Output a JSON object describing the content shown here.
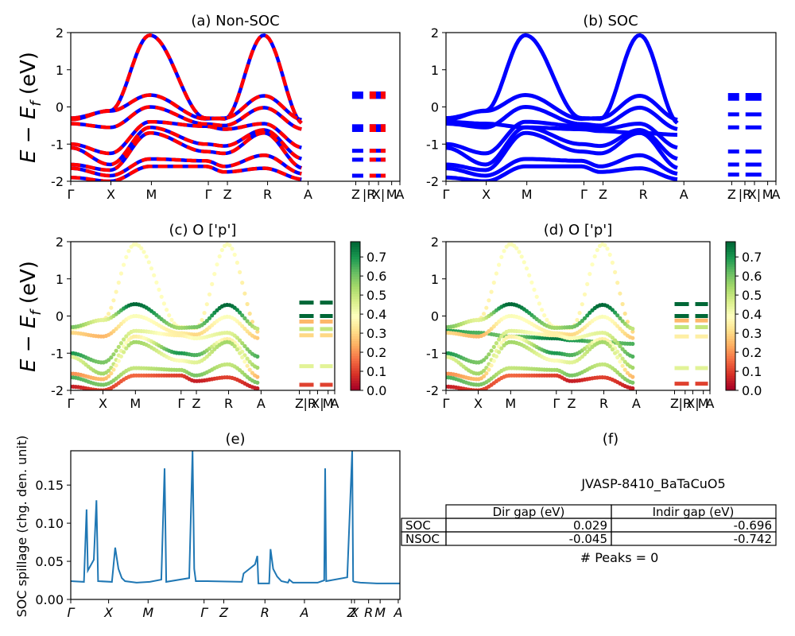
{
  "chart_data": [
    {
      "id": "a",
      "type": "line",
      "title": "(a) Non-SOC",
      "ylabel": "E − E_f (eV)",
      "ylim": [
        -2,
        2
      ],
      "y_ticks": [
        -2,
        -1,
        0,
        1,
        2
      ],
      "x_ticks": [
        {
          "pos": 0.0,
          "label": "Γ"
        },
        {
          "pos": 0.122,
          "label": "X"
        },
        {
          "pos": 0.245,
          "label": "M"
        },
        {
          "pos": 0.418,
          "label": "Γ"
        },
        {
          "pos": 0.476,
          "label": "Z"
        },
        {
          "pos": 0.598,
          "label": "R"
        },
        {
          "pos": 0.721,
          "label": "A"
        },
        {
          "pos": 0.866,
          "label": "Z"
        },
        {
          "pos": 0.906,
          "label": "|R"
        },
        {
          "pos": 0.935,
          "label": "X|"
        },
        {
          "pos": 0.975,
          "label": "M"
        },
        {
          "pos": 1.0,
          "label": "A"
        }
      ],
      "series": [
        {
          "color": "#0000ff",
          "style": "solid",
          "width": 4.5,
          "values": [
            [
              -0.34,
              -0.1,
              1.93,
              -0.3,
              -0.32,
              1.93,
              -0.45
            ],
            [
              -0.3,
              -0.11,
              0.32,
              -0.32,
              -0.3,
              0.3,
              -0.35
            ],
            [
              -0.45,
              -0.55,
              0.0,
              -0.46,
              -0.5,
              -0.02,
              -0.6
            ],
            [
              -1.0,
              -1.25,
              -0.4,
              -0.52,
              -0.6,
              -0.45,
              -1.1
            ],
            [
              -1.1,
              -1.55,
              -0.55,
              -1.0,
              -1.05,
              -0.62,
              -1.4
            ],
            [
              -1.55,
              -1.7,
              -0.7,
              -1.2,
              -1.25,
              -0.7,
              -1.65
            ],
            [
              -1.65,
              -1.85,
              -1.4,
              -1.45,
              -1.6,
              -1.3,
              -1.8
            ],
            [
              -1.9,
              -2.0,
              -1.6,
              -1.6,
              -1.75,
              -1.65,
              -1.95
            ]
          ]
        },
        {
          "color": "#ff0000",
          "style": "dashed",
          "width": 4.5,
          "values": [
            [
              -0.34,
              -0.1,
              1.93,
              -0.3,
              -0.32,
              1.93,
              -0.45
            ],
            [
              -0.3,
              -0.11,
              0.32,
              -0.32,
              -0.3,
              0.3,
              -0.35
            ],
            [
              -0.45,
              -0.55,
              0.0,
              -0.46,
              -0.5,
              -0.02,
              -0.6
            ],
            [
              -1.0,
              -1.25,
              -0.4,
              -0.52,
              -0.6,
              -0.45,
              -1.1
            ],
            [
              -1.1,
              -1.55,
              -0.55,
              -1.0,
              -1.05,
              -0.62,
              -1.4
            ],
            [
              -1.55,
              -1.7,
              -0.7,
              -1.2,
              -1.25,
              -0.7,
              -1.65
            ],
            [
              -1.65,
              -1.85,
              -1.4,
              -1.45,
              -1.6,
              -1.3,
              -1.8
            ],
            [
              -1.9,
              -2.0,
              -1.6,
              -1.6,
              -1.75,
              -1.65,
              -1.95
            ]
          ]
        }
      ],
      "segments": [
        0.36,
        0.27,
        -0.52,
        -0.62,
        -1.18,
        -1.42,
        -1.85
      ]
    },
    {
      "id": "b",
      "type": "line",
      "title": "(b) SOC",
      "ylim": [
        -2,
        2
      ],
      "y_ticks": [
        -2,
        -1,
        0,
        1,
        2
      ],
      "x_ticks": [
        {
          "pos": 0.0,
          "label": "Γ"
        },
        {
          "pos": 0.122,
          "label": "X"
        },
        {
          "pos": 0.245,
          "label": "M"
        },
        {
          "pos": 0.418,
          "label": "Γ"
        },
        {
          "pos": 0.476,
          "label": "Z"
        },
        {
          "pos": 0.598,
          "label": "R"
        },
        {
          "pos": 0.721,
          "label": "A"
        },
        {
          "pos": 0.866,
          "label": "Z"
        },
        {
          "pos": 0.906,
          "label": "|R"
        },
        {
          "pos": 0.935,
          "label": "X|"
        },
        {
          "pos": 0.975,
          "label": "M"
        },
        {
          "pos": 1.0,
          "label": "A"
        }
      ],
      "series": [
        {
          "color": "#0000ff",
          "style": "solid",
          "width": 5,
          "values": [
            [
              -0.34,
              -0.1,
              1.93,
              -0.3,
              -0.32,
              1.93,
              -0.45
            ],
            [
              -0.3,
              -0.11,
              0.32,
              -0.32,
              -0.3,
              0.3,
              -0.35
            ],
            [
              -0.4,
              -0.45,
              -0.55,
              -0.6,
              -0.65,
              -0.7,
              -0.75
            ],
            [
              -0.45,
              -0.55,
              0.0,
              -0.46,
              -0.5,
              -0.02,
              -0.6
            ],
            [
              -1.0,
              -1.25,
              -0.4,
              -0.52,
              -0.6,
              -0.45,
              -1.1
            ],
            [
              -1.1,
              -1.55,
              -0.55,
              -1.0,
              -1.05,
              -0.62,
              -1.4
            ],
            [
              -1.55,
              -1.7,
              -0.7,
              -1.2,
              -1.25,
              -0.7,
              -1.65
            ],
            [
              -1.65,
              -1.85,
              -1.4,
              -1.45,
              -1.6,
              -1.3,
              -1.8
            ],
            [
              -1.9,
              -2.0,
              -1.6,
              -1.6,
              -1.75,
              -1.65,
              -1.95
            ]
          ]
        }
      ],
      "segments": [
        0.32,
        0.22,
        -0.2,
        -0.55,
        -1.2,
        -1.55,
        -1.82
      ]
    },
    {
      "id": "c",
      "type": "scatter",
      "title": "(c)  O ['p']",
      "ylabel": "E − E_f (eV)",
      "ylim": [
        -2,
        2
      ],
      "y_ticks": [
        -2,
        -1,
        0,
        1,
        2
      ],
      "colorbar": {
        "ticks": [
          0.0,
          0.1,
          0.2,
          0.3,
          0.4,
          0.5,
          0.6,
          0.7
        ],
        "range": [
          0,
          0.78
        ],
        "cmap": "RdYlGn"
      },
      "x_ticks": [
        {
          "pos": 0.0,
          "label": "Γ"
        },
        {
          "pos": 0.122,
          "label": "X"
        },
        {
          "pos": 0.245,
          "label": "M"
        },
        {
          "pos": 0.418,
          "label": "Γ"
        },
        {
          "pos": 0.476,
          "label": "Z"
        },
        {
          "pos": 0.598,
          "label": "R"
        },
        {
          "pos": 0.721,
          "label": "A"
        },
        {
          "pos": 0.866,
          "label": "Z"
        },
        {
          "pos": 0.906,
          "label": "|R"
        },
        {
          "pos": 0.935,
          "label": "X|"
        },
        {
          "pos": 0.975,
          "label": "M"
        },
        {
          "pos": 1.0,
          "label": "A"
        }
      ],
      "bands": [
        {
          "w": [
            0.4,
            0.35,
            0.4,
            0.38,
            0.36,
            0.4,
            0.3
          ],
          "values": [
            -0.34,
            -0.1,
            1.93,
            -0.3,
            -0.32,
            1.93,
            -0.45
          ]
        },
        {
          "w": [
            0.6,
            0.45,
            0.78,
            0.55,
            0.6,
            0.78,
            0.5
          ],
          "values": [
            -0.3,
            -0.11,
            0.32,
            -0.32,
            -0.3,
            0.3,
            -0.35
          ]
        },
        {
          "w": [
            0.3,
            0.25,
            0.4,
            0.35,
            0.3,
            0.4,
            0.28
          ],
          "values": [
            -0.45,
            -0.55,
            0.0,
            -0.46,
            -0.5,
            -0.02,
            -0.6
          ]
        },
        {
          "w": [
            0.7,
            0.6,
            0.45,
            0.35,
            0.4,
            0.45,
            0.65
          ],
          "values": [
            -1.0,
            -1.25,
            -0.4,
            -0.52,
            -0.6,
            -0.45,
            -1.1
          ]
        },
        {
          "w": [
            0.45,
            0.55,
            0.35,
            0.7,
            0.65,
            0.35,
            0.55
          ],
          "values": [
            -1.1,
            -1.55,
            -0.55,
            -1.0,
            -1.05,
            -0.62,
            -1.4
          ]
        },
        {
          "w": [
            0.2,
            0.25,
            0.55,
            0.4,
            0.45,
            0.55,
            0.25
          ],
          "values": [
            -1.55,
            -1.7,
            -0.7,
            -1.2,
            -1.25,
            -0.7,
            -1.65
          ]
        },
        {
          "w": [
            0.65,
            0.6,
            0.5,
            0.55,
            0.6,
            0.5,
            0.6
          ],
          "values": [
            -1.65,
            -1.85,
            -1.4,
            -1.45,
            -1.6,
            -1.3,
            -1.8
          ]
        },
        {
          "w": [
            0.05,
            0.1,
            0.15,
            0.1,
            0.05,
            0.1,
            0.05
          ],
          "values": [
            -1.9,
            -2.0,
            -1.6,
            -1.6,
            -1.75,
            -1.65,
            -1.95
          ]
        }
      ],
      "segments": [
        {
          "v": 0.36,
          "w": 0.78
        },
        {
          "v": 0.0,
          "w": 0.78
        },
        {
          "v": -0.15,
          "w": 0.25
        },
        {
          "v": -0.35,
          "w": 0.5
        },
        {
          "v": -0.52,
          "w": 0.3
        },
        {
          "v": -1.35,
          "w": 0.45
        },
        {
          "v": -1.85,
          "w": 0.1
        }
      ]
    },
    {
      "id": "d",
      "type": "scatter",
      "title": "(d) O ['p']",
      "ylim": [
        -2,
        2
      ],
      "y_ticks": [
        -2,
        -1,
        0,
        1,
        2
      ],
      "colorbar": {
        "ticks": [
          0.0,
          0.1,
          0.2,
          0.3,
          0.4,
          0.5,
          0.6,
          0.7
        ],
        "range": [
          0,
          0.78
        ],
        "cmap": "RdYlGn"
      },
      "x_ticks": [
        {
          "pos": 0.0,
          "label": "Γ"
        },
        {
          "pos": 0.122,
          "label": "X"
        },
        {
          "pos": 0.245,
          "label": "M"
        },
        {
          "pos": 0.418,
          "label": "Γ"
        },
        {
          "pos": 0.476,
          "label": "Z"
        },
        {
          "pos": 0.598,
          "label": "R"
        },
        {
          "pos": 0.721,
          "label": "A"
        },
        {
          "pos": 0.866,
          "label": "Z"
        },
        {
          "pos": 0.906,
          "label": "|R"
        },
        {
          "pos": 0.935,
          "label": "X|"
        },
        {
          "pos": 0.975,
          "label": "M"
        },
        {
          "pos": 1.0,
          "label": "A"
        }
      ],
      "bands": [
        {
          "w": [
            0.4,
            0.35,
            0.4,
            0.38,
            0.36,
            0.4,
            0.3
          ],
          "values": [
            -0.34,
            -0.1,
            1.93,
            -0.3,
            -0.32,
            1.93,
            -0.45
          ]
        },
        {
          "w": [
            0.6,
            0.45,
            0.78,
            0.55,
            0.6,
            0.78,
            0.5
          ],
          "values": [
            -0.3,
            -0.11,
            0.32,
            -0.32,
            -0.3,
            0.3,
            -0.35
          ]
        },
        {
          "w": [
            0.7,
            0.65,
            0.6,
            0.75,
            0.7,
            0.6,
            0.65
          ],
          "values": [
            -0.4,
            -0.45,
            -0.55,
            -0.6,
            -0.65,
            -0.7,
            -0.75
          ]
        },
        {
          "w": [
            0.3,
            0.25,
            0.4,
            0.35,
            0.3,
            0.4,
            0.28
          ],
          "values": [
            -0.45,
            -0.55,
            0.0,
            -0.46,
            -0.5,
            -0.02,
            -0.6
          ]
        },
        {
          "w": [
            0.7,
            0.6,
            0.45,
            0.35,
            0.4,
            0.45,
            0.65
          ],
          "values": [
            -1.0,
            -1.25,
            -0.4,
            -0.52,
            -0.6,
            -0.45,
            -1.1
          ]
        },
        {
          "w": [
            0.45,
            0.55,
            0.35,
            0.7,
            0.65,
            0.35,
            0.55
          ],
          "values": [
            -1.1,
            -1.55,
            -0.55,
            -1.0,
            -1.05,
            -0.62,
            -1.4
          ]
        },
        {
          "w": [
            0.2,
            0.25,
            0.55,
            0.4,
            0.45,
            0.55,
            0.25
          ],
          "values": [
            -1.55,
            -1.7,
            -0.7,
            -1.2,
            -1.25,
            -0.7,
            -1.65
          ]
        },
        {
          "w": [
            0.65,
            0.6,
            0.5,
            0.55,
            0.6,
            0.5,
            0.6
          ],
          "values": [
            -1.65,
            -1.85,
            -1.4,
            -1.45,
            -1.6,
            -1.3,
            -1.8
          ]
        },
        {
          "w": [
            0.05,
            0.1,
            0.15,
            0.1,
            0.05,
            0.1,
            0.05
          ],
          "values": [
            -1.9,
            -2.0,
            -1.6,
            -1.6,
            -1.75,
            -1.65,
            -1.95
          ]
        }
      ],
      "segments": [
        {
          "v": 0.32,
          "w": 0.78
        },
        {
          "v": 0.0,
          "w": 0.78
        },
        {
          "v": -0.12,
          "w": 0.25
        },
        {
          "v": -0.3,
          "w": 0.5
        },
        {
          "v": -0.55,
          "w": 0.35
        },
        {
          "v": -1.4,
          "w": 0.45
        },
        {
          "v": -1.82,
          "w": 0.1
        }
      ]
    },
    {
      "id": "e",
      "type": "line",
      "title": "(e)",
      "ylabel": "SOC spillage (chg. den. unit)",
      "ylim": [
        0,
        0.195
      ],
      "y_ticks": [
        0.0,
        0.05,
        0.1,
        0.15
      ],
      "y_tick_labels": [
        "0.00",
        "0.05",
        "0.10",
        "0.15"
      ],
      "color": "#1f77b4",
      "x_ticks": [
        {
          "pos": 0.0,
          "label": "Γ"
        },
        {
          "pos": 0.115,
          "label": "X"
        },
        {
          "pos": 0.235,
          "label": "M"
        },
        {
          "pos": 0.405,
          "label": "Γ"
        },
        {
          "pos": 0.465,
          "label": "Z"
        },
        {
          "pos": 0.59,
          "label": "R"
        },
        {
          "pos": 0.71,
          "label": "A"
        },
        {
          "pos": 0.853,
          "label": "Z"
        },
        {
          "pos": 0.862,
          "label": "X"
        },
        {
          "pos": 0.905,
          "label": "R"
        },
        {
          "pos": 0.94,
          "label": "M"
        },
        {
          "pos": 0.995,
          "label": "A"
        }
      ],
      "x": [
        0.0,
        0.04,
        0.048,
        0.052,
        0.07,
        0.078,
        0.083,
        0.125,
        0.135,
        0.145,
        0.155,
        0.165,
        0.2,
        0.24,
        0.275,
        0.285,
        0.29,
        0.36,
        0.37,
        0.375,
        0.38,
        0.415,
        0.52,
        0.525,
        0.56,
        0.567,
        0.57,
        0.603,
        0.607,
        0.615,
        0.627,
        0.64,
        0.66,
        0.664,
        0.675,
        0.75,
        0.77,
        0.773,
        0.776,
        0.84,
        0.855,
        0.858,
        0.862,
        0.88,
        0.93,
        1.0
      ],
      "values": [
        0.024,
        0.023,
        0.118,
        0.038,
        0.052,
        0.13,
        0.024,
        0.023,
        0.068,
        0.04,
        0.028,
        0.024,
        0.022,
        0.023,
        0.026,
        0.172,
        0.023,
        0.028,
        0.195,
        0.04,
        0.024,
        0.024,
        0.023,
        0.034,
        0.046,
        0.057,
        0.021,
        0.021,
        0.066,
        0.04,
        0.03,
        0.024,
        0.022,
        0.026,
        0.022,
        0.022,
        0.025,
        0.172,
        0.024,
        0.029,
        0.195,
        0.024,
        0.023,
        0.022,
        0.021,
        0.021
      ]
    }
  ],
  "panel_f": {
    "title": "(f)",
    "jid": "JVASP-8410_BaTaCuO5",
    "table": {
      "headers": [
        "Dir gap (eV)",
        "Indir gap (eV)"
      ],
      "rows": [
        {
          "label": "SOC",
          "dir": "0.029",
          "indir": "-0.696"
        },
        {
          "label": "NSOC",
          "dir": "-0.045",
          "indir": "-0.742"
        }
      ]
    },
    "peaks": "# Peaks = 0"
  }
}
